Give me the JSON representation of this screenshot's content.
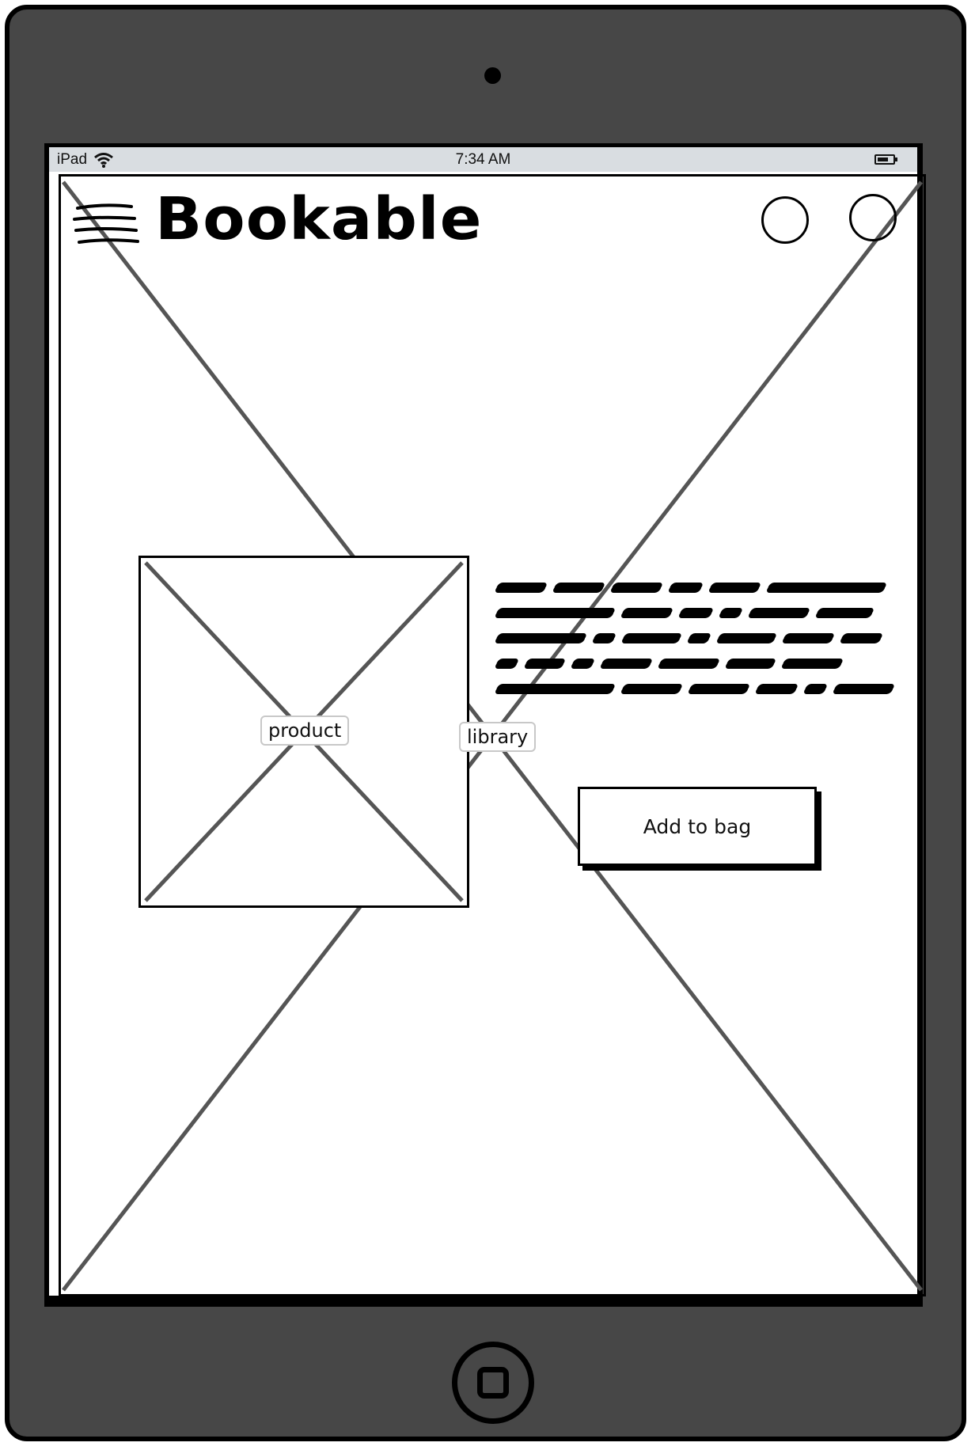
{
  "status_bar": {
    "device": "iPad",
    "time": "7:34 AM",
    "icons": [
      "wifi-icon",
      "battery-icon"
    ]
  },
  "header": {
    "logo": "Bookable",
    "menu_icon": "hamburger-menu-icon",
    "circle_buttons": [
      "circle-button-1",
      "circle-button-2"
    ]
  },
  "background_placeholder": {
    "label": "library"
  },
  "product": {
    "image_label": "product",
    "add_to_bag_label": "Add to bag"
  },
  "colors": {
    "device_body": "#474747",
    "status_bar": "#d9dde1",
    "placeholder_line": "#555555"
  }
}
